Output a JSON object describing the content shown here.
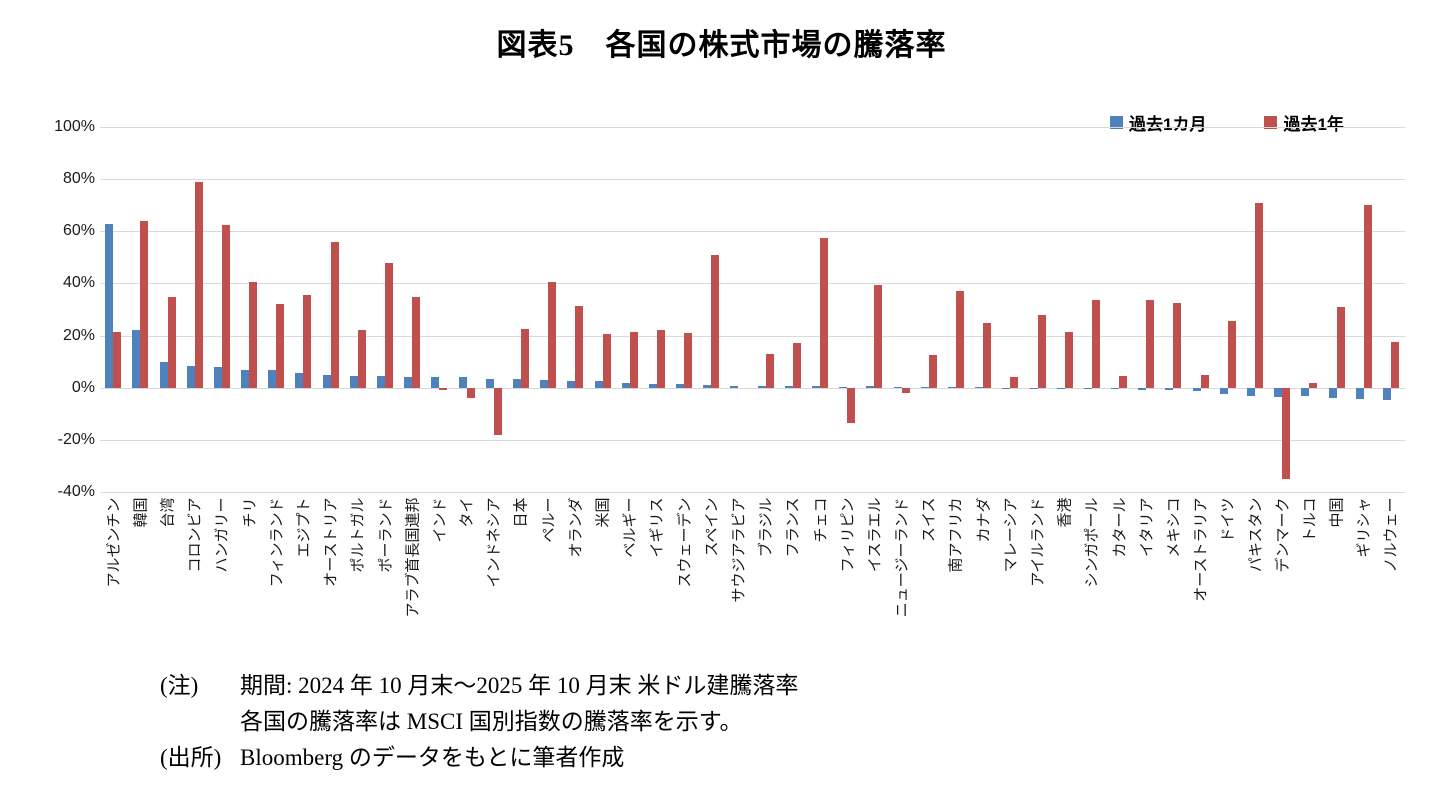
{
  "title": "図表5　各国の株式市場の騰落率",
  "y_axis": {
    "labels": [
      "100%",
      "80%",
      "60%",
      "40%",
      "20%",
      "0%",
      "-20%",
      "-40%"
    ],
    "values": [
      100,
      80,
      60,
      40,
      20,
      0,
      -20,
      -40
    ]
  },
  "chart_data": {
    "type": "bar",
    "title": "図表5　各国の株式市場の騰落率",
    "categories": [
      "アルゼンチン",
      "韓国",
      "台湾",
      "コロンビア",
      "ハンガリー",
      "チリ",
      "フィンランド",
      "エジプト",
      "オーストリア",
      "ポルトガル",
      "ポーランド",
      "アラブ首長国連邦",
      "インド",
      "タイ",
      "インドネシア",
      "日本",
      "ペルー",
      "オランダ",
      "米国",
      "ベルギー",
      "イギリス",
      "スウェーデン",
      "スペイン",
      "サウジアラビア",
      "ブラジル",
      "フランス",
      "チェコ",
      "フィリピン",
      "イスラエル",
      "ニュージーランド",
      "スイス",
      "南アフリカ",
      "カナダ",
      "マレーシア",
      "アイルランド",
      "香港",
      "シンガポール",
      "カタール",
      "イタリア",
      "メキシコ",
      "オーストラリア",
      "ドイツ",
      "パキスタン",
      "デンマーク",
      "トルコ",
      "中国",
      "ギリシャ",
      "ノルウェー"
    ],
    "series": [
      {
        "name": "過去1カ月",
        "color": "#4F81BD",
        "values": [
          63,
          22,
          10,
          8.5,
          8,
          7,
          7,
          5.5,
          5,
          4.5,
          4.5,
          4,
          4,
          4,
          3.5,
          3.5,
          3,
          2.5,
          2.5,
          2,
          1.5,
          1.5,
          1,
          0.5,
          0.5,
          0.5,
          0.5,
          0.3,
          0.5,
          0.2,
          0.4,
          0.4,
          0.3,
          0.1,
          0.1,
          -0.3,
          -0.6,
          -0.6,
          -1,
          -1,
          -1.3,
          -2.3,
          -3.2,
          -3.6,
          -3.2,
          -4,
          -4.5,
          -4.9
        ]
      },
      {
        "name": "過去1年",
        "color": "#C0504D",
        "values": [
          21.5,
          64,
          35,
          79,
          62.5,
          40.5,
          32,
          35.5,
          56,
          22,
          48,
          35,
          -1,
          -4,
          -18,
          22.5,
          40.5,
          31.5,
          20.5,
          21.5,
          22,
          21,
          51,
          0,
          13,
          17,
          57.5,
          -13.5,
          39.5,
          -2,
          12.5,
          37,
          25,
          4,
          28,
          21.5,
          33.5,
          4.5,
          33.5,
          32.5,
          5,
          25.5,
          71,
          -35,
          2,
          31,
          70,
          17.5
        ]
      }
    ],
    "ylabel": "",
    "xlabel": "",
    "ylim": [
      -40,
      100
    ],
    "ytick_step": 20,
    "grid": true,
    "gridline_color": "#d9d9d9",
    "legend_position": "top-right"
  },
  "notes": {
    "note_label": "(注)",
    "note_line1": "期間: 2024 年 10 月末～2025 年 10 月末 米ドル建騰落率",
    "note_line2": "各国の騰落率は MSCI 国別指数の騰落率を示す。",
    "source_label": "(出所)",
    "source_text": "Bloomberg のデータをもとに筆者作成"
  }
}
